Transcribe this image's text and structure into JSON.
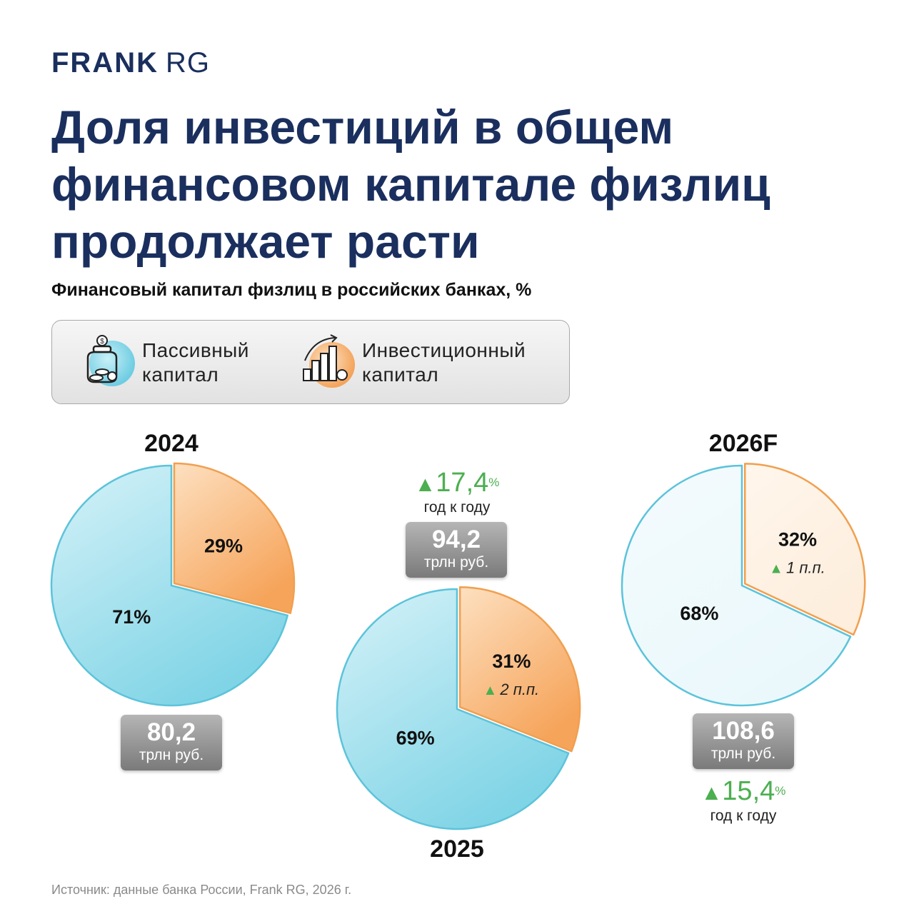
{
  "brand": {
    "name": "FRANK",
    "suffix": "RG"
  },
  "title": "Доля инвестиций в общем финансовом капитале физлиц продолжает расти",
  "subtitle": "Финансовый капитал физлиц в российских банках, %",
  "legend": [
    {
      "label": "Пассивный\nкапитал",
      "icon": "money-jar-icon",
      "color": "#7fd4e6"
    },
    {
      "label": "Инвестиционный\nкапитал",
      "icon": "growth-chart-coins-icon",
      "color": "#f6a45a"
    }
  ],
  "chart_data": [
    {
      "type": "pie",
      "year": "2024",
      "style": "solid",
      "slices": [
        {
          "name": "Пассивный капитал",
          "value": 71,
          "label": "71%"
        },
        {
          "name": "Инвестиционный капитал",
          "value": 29,
          "label": "29%"
        }
      ],
      "total": {
        "value": "80,2",
        "unit": "трлн руб."
      }
    },
    {
      "type": "pie",
      "year": "2025",
      "style": "solid",
      "slices": [
        {
          "name": "Пассивный капитал",
          "value": 69,
          "label": "69%"
        },
        {
          "name": "Инвестиционный капитал",
          "value": 31,
          "label": "31%",
          "delta": "2 п.п."
        }
      ],
      "total": {
        "value": "94,2",
        "unit": "трлн руб."
      },
      "growth": {
        "value": "17,4",
        "unit": "%",
        "label": "год к году"
      }
    },
    {
      "type": "pie",
      "year": "2026F",
      "style": "forecast",
      "slices": [
        {
          "name": "Пассивный капитал",
          "value": 68,
          "label": "68%"
        },
        {
          "name": "Инвестиционный капитал",
          "value": 32,
          "label": "32%",
          "delta": "1 п.п."
        }
      ],
      "total": {
        "value": "108,6",
        "unit": "трлн руб."
      },
      "growth": {
        "value": "15,4",
        "unit": "%",
        "label": "год к году"
      }
    }
  ],
  "colors": {
    "passive": "#7fd4e6",
    "invest": "#f6a45a",
    "passive_light": "#eaf8fc",
    "invest_light": "#fdeedd",
    "growth": "#4caf50",
    "title": "#1a2f5e"
  },
  "triangle": "▲",
  "source": "Источник: данные банка России, Frank RG, 2026 г."
}
